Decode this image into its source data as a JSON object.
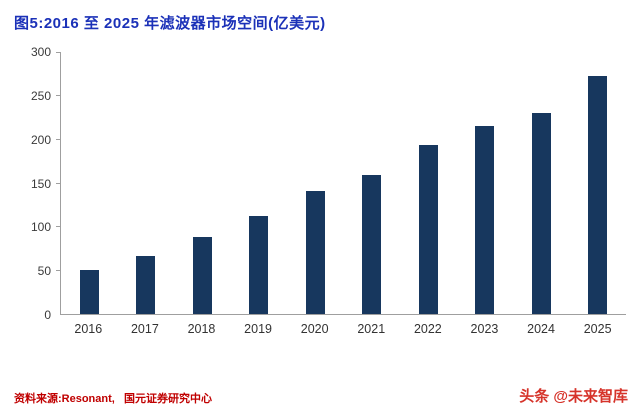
{
  "header": {
    "title": "图5:2016 至 2025 年滤波器市场空间(亿美元)"
  },
  "chart_data": {
    "type": "bar",
    "title": "图5:2016 至 2025 年滤波器市场空间(亿美元)",
    "categories": [
      "2016",
      "2017",
      "2018",
      "2019",
      "2020",
      "2021",
      "2022",
      "2023",
      "2024",
      "2025"
    ],
    "values": [
      50,
      67,
      88,
      112,
      141,
      159,
      194,
      215,
      230,
      272
    ],
    "xlabel": "",
    "ylabel": "",
    "ylim": [
      0,
      300
    ],
    "yticks": [
      0,
      50,
      100,
      150,
      200,
      250,
      300
    ],
    "grid": false,
    "legend": "none",
    "bar_color": "#17375e"
  },
  "footer": {
    "source": "资料来源:Resonant,   国元证券研究中心",
    "watermark": "头条 @未来智库"
  },
  "colors": {
    "title": "#1b31b8",
    "bar": "#17375e",
    "axis": "#9f9f9f",
    "source_text": "#c00000",
    "watermark": "#d6332a"
  }
}
